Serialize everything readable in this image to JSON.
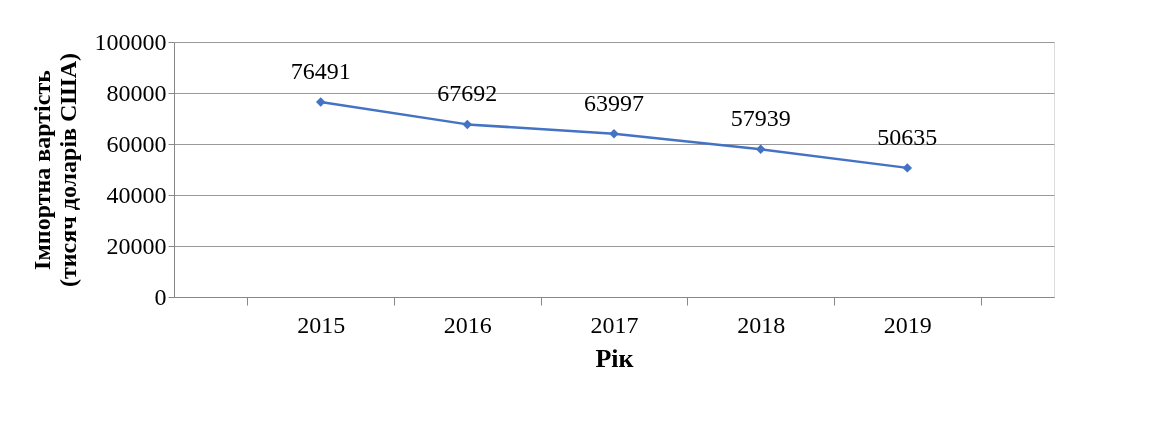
{
  "chart_data": {
    "type": "line",
    "xlabel": "Рік",
    "ylabel": "Імпортна вартість\n(тисяч доларів США)",
    "categories": [
      "2015",
      "2016",
      "2017",
      "2018",
      "2019"
    ],
    "series": [
      {
        "color": "#4472c4",
        "values": [
          76491,
          67692,
          63997,
          57939,
          50635
        ]
      }
    ],
    "ylim": [
      0,
      100000
    ],
    "yticks": [
      0,
      20000,
      40000,
      60000,
      80000,
      100000
    ],
    "grid": "y",
    "data_labels": true,
    "marker": "diamond",
    "line_style": "solid",
    "legend": false
  }
}
